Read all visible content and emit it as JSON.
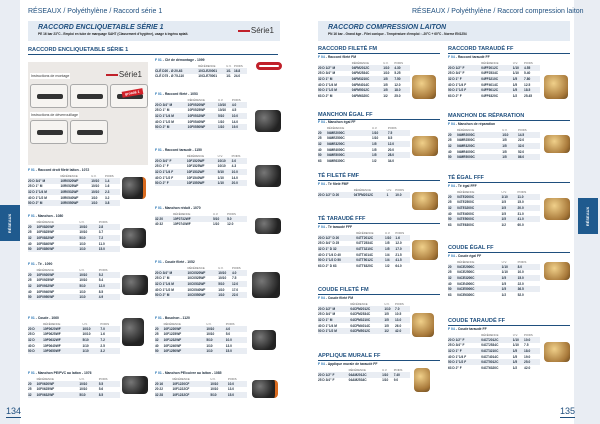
{
  "left_page": {
    "breadcrumb": "RÉSEAUX / Polyéthylène / Raccord série 1",
    "banner_title": "RACCORD ENCLIQUETABLE SÉRIE 1",
    "banner_subtitle": "PE 16 bar 23°C - Emploi en tube de marquage SAHT (Classement d'hygiène), usage à ingénu aptait.",
    "logo": "Série1",
    "section": "RACCORD ENCLIQUETABLE SÉRIE 1",
    "tab": "RÉSEAUX",
    "page_number": "134",
    "instructions_montage": "Instructions de montage",
    "instructions_deverrouillage": "Instructions de déverrouillage",
    "badge": "grosdé 1",
    "panel_logo": "Série1"
  },
  "right_page": {
    "breadcrumb": "RÉSEAUX / Polyéthylène / Raccord compression laiton",
    "banner_title": "RACCORD COMPRESSION LAITON",
    "banner_subtitle": "PN 16 bar - Grand âge - Filet conique - Température d'emploi : -20°C + 60°C - Norme EN1254",
    "tab": "RÉSEAUX",
    "page_number": "135",
    "sections": [
      "RACCORD FILETÉ FM",
      "RACCORD TARAUDÉ FF",
      "MANCHON ÉGAL FF",
      "MANCHON DE RÉPARATION",
      "TÉ FILETÉ FMF",
      "TÉ ÉGAL FFF",
      "TÉ TARAUDÉ FFF",
      "COUDE ÉGAL FF",
      "COUDE FILETÉ FM",
      "COUDE TARAUDÉ FF",
      "APPLIQUE MURALE FF"
    ]
  },
  "headers": [
    "",
    "RÉFÉRENCE",
    "U.V.",
    "POIDS"
  ],
  "blocks": [
    {
      "code": "F 01",
      "title": "Clé de démontage - 1099",
      "rows": [
        [
          "CLÉ D20 - Ø 20-63",
          "10CLE20001",
          "1/1",
          "16.8"
        ],
        [
          "CLÉ D75 - Ø 75-110",
          "10CLE75001",
          "1/1",
          "24.0"
        ]
      ]
    },
    {
      "code": "F 01",
      "title": "Raccord fileté - 1053",
      "rows": [
        [
          "20 D 3/4\" M",
          "10F0520WF",
          "10/10",
          "4.0"
        ],
        [
          "25 D 1\" M",
          "10F0525WF",
          "10/10",
          "4.5"
        ],
        [
          "32 D 1\"1/4 M",
          "10F0532WF",
          "5/10",
          "10.0"
        ],
        [
          "40 D 1\"1/2 M",
          "10F0540WF",
          "1/10",
          "14.0"
        ],
        [
          "50 D 2\" M",
          "10F0550WF",
          "1/10",
          "19.0"
        ]
      ]
    },
    {
      "code": "F 01",
      "title": "Raccord droit fileté laiton - 1072",
      "rows": [
        [
          "20 D 3/4\" M",
          "10R0520WF",
          "10/10",
          "1.4"
        ],
        [
          "25 D 1\" M",
          "10R0525WF",
          "10/10",
          "1.6"
        ],
        [
          "32 D 1\"1/4 M",
          "10R0532WF",
          "10/10",
          "2.3"
        ],
        [
          "40 D 1\"1/2 M",
          "10R0540WF",
          "1/10",
          "3.2"
        ],
        [
          "50 D 2\" M",
          "10R0550WF",
          "1/10",
          "3.8"
        ]
      ]
    },
    {
      "code": "F 01",
      "title": "Raccord taraudé - 1150",
      "rows": [
        [
          "20 D 3/4\" F",
          "10F1520WF",
          "10/10",
          "3.0"
        ],
        [
          "25 D 1\" F",
          "10F1525WF",
          "10/10",
          "4.3"
        ],
        [
          "32 D 1\"1/4 F",
          "10F1532WF",
          "5/10",
          "10.0"
        ],
        [
          "40 D 1\"1/2 F",
          "10F1540WF",
          "1/10",
          "14.0"
        ],
        [
          "50 D 2\" F",
          "10F1550WF",
          "1/10",
          "20.0"
        ]
      ]
    },
    {
      "code": "F 01",
      "title": "Manchon - 1080",
      "rows": [
        [
          "20",
          "10F0820WF",
          "10/10",
          "2.8"
        ],
        [
          "25",
          "10F0825WF",
          "10/10",
          "3.7"
        ],
        [
          "32",
          "10F0832WF",
          "5/10",
          "7.2"
        ],
        [
          "40",
          "10F0840WF",
          "1/10",
          "11.0"
        ],
        [
          "50",
          "10F0850WF",
          "1/10",
          "15.0"
        ]
      ]
    },
    {
      "code": "F 01",
      "title": "Manchon réduit - 1070",
      "rows": [
        [
          "32 20",
          "10F0732WF",
          "5/10",
          "5.0"
        ],
        [
          "40 32",
          "10F0740WF",
          "1/10",
          "12.0"
        ]
      ]
    },
    {
      "code": "F 01",
      "title": "Té - 1090",
      "rows": [
        [
          "20",
          "10F0920WF",
          "10/10",
          "5.2"
        ],
        [
          "25",
          "10F0925WF",
          "10/10",
          "5.4"
        ],
        [
          "32",
          "10F0932WF",
          "5/10",
          "12.0"
        ],
        [
          "40",
          "10F0940WF",
          "1/10",
          "8.5"
        ],
        [
          "50",
          "10F0950WF",
          "1/10",
          "4.9"
        ]
      ]
    },
    {
      "code": "F 01",
      "title": "Coude fileté - 1052",
      "rows": [
        [
          "20 D 3/4\" M",
          "10C0520WF",
          "10/10",
          "4.0"
        ],
        [
          "25 D 1\" M",
          "10C0525WF",
          "10/10",
          "7.5"
        ],
        [
          "32 D 1\"1/4 M",
          "10C0532WF",
          "5/10",
          "12.0"
        ],
        [
          "40 D 1\"1/2 M",
          "10C0540WF",
          "1/10",
          "17.0"
        ],
        [
          "50 D 2\" M",
          "10C0550WF",
          "1/10",
          "22.0"
        ]
      ]
    },
    {
      "code": "F 01",
      "title": "Coude - 1060",
      "rows": [
        [
          "20 D",
          "10F0620WF",
          "10/10",
          "7.0"
        ],
        [
          "25 D",
          "10F0625WF",
          "10/10",
          "1.6"
        ],
        [
          "32 D",
          "10F0632WF",
          "5/10",
          "7.2"
        ],
        [
          "40 D",
          "10F0640WF",
          "1/10",
          "2.5"
        ],
        [
          "50 D",
          "10F0650WF",
          "1/10",
          "3.2"
        ]
      ]
    },
    {
      "code": "F 01",
      "title": "Bouchon - 1120",
      "rows": [
        [
          "20",
          "10F1220WF",
          "10/10",
          "4.0"
        ],
        [
          "25",
          "10F1225WF",
          "10/10",
          "5.0"
        ],
        [
          "32",
          "10F1232WF",
          "5/10",
          "10.0"
        ],
        [
          "40",
          "10F1240WF",
          "1/10",
          "13.0"
        ],
        [
          "50",
          "10F1250WF",
          "1/10",
          "15.0"
        ]
      ]
    },
    {
      "code": "F 01",
      "title": "Manchon PE/PVC au laiton - 1076",
      "rows": [
        [
          "20",
          "10F0620WF",
          "10/10",
          "5.5"
        ],
        [
          "25",
          "10F0625WF",
          "10/10",
          "5.6"
        ],
        [
          "32",
          "10F0632WF",
          "5/10",
          "8.5"
        ]
      ]
    },
    {
      "code": "F 01",
      "title": "Manchon PE/cuivre au laiton - 1085",
      "rows": [
        [
          "20 16",
          "10F1220CF",
          "10/10",
          "10.0"
        ],
        [
          "20 22",
          "10F1222CF",
          "10/10",
          "13.0"
        ],
        [
          "32 28",
          "10F1232CF",
          "5/10",
          "15.0"
        ]
      ]
    },
    {
      "code": "F 04",
      "title": "Raccord fileté FM",
      "rows": [
        [
          "20 D 1/2\" M",
          "04FM2012C",
          "1/10",
          "4.30"
        ],
        [
          "25 D 3/4\" M",
          "04FM2534C",
          "1/10",
          "5.25"
        ],
        [
          "32 D 1\" M",
          "04FM3210C",
          "1/5",
          "7.50"
        ],
        [
          "40 D 1\"1/4 M",
          "04FM4014C",
          "1/5",
          "12.0"
        ],
        [
          "50 D 1\"1/2 M",
          "04FM5012C",
          "1/5",
          "18.0"
        ],
        [
          "63 D 2\" M",
          "04FM6320C",
          "1/2",
          "25.0"
        ]
      ]
    },
    {
      "code": "F 04",
      "title": "Raccord taraudé FF",
      "rows": [
        [
          "20 D 1/2\" F",
          "04FF2012C",
          "1/10",
          "4.55"
        ],
        [
          "25 D 3/4\" F",
          "04FF2534C",
          "1/10",
          "5.40"
        ],
        [
          "32 D 1\" F",
          "04FF3210C",
          "1/5",
          "7.80"
        ],
        [
          "40 D 1\"1/4 F",
          "04FF4014C",
          "1/5",
          "12.5"
        ],
        [
          "50 D 1\"1/2 F",
          "04FF5012C",
          "1/5",
          "18.5"
        ],
        [
          "63 D 2\" F",
          "04FF6320C",
          "1/2",
          "25.45"
        ]
      ]
    },
    {
      "code": "F 04",
      "title": "Manchon égal FF",
      "rows": [
        [
          "20",
          "04ME2000C",
          "1/10",
          "7.5"
        ],
        [
          "25",
          "04ME2500C",
          "1/10",
          "8.5"
        ],
        [
          "32",
          "04ME3200C",
          "1/5",
          "12.0"
        ],
        [
          "40",
          "04ME4000C",
          "1/5",
          "20.0"
        ],
        [
          "50",
          "04ME5000C",
          "1/5",
          "28.0"
        ],
        [
          "63",
          "04ME6300C",
          "1/2",
          "34.0"
        ]
      ]
    },
    {
      "code": "F 04",
      "title": "Manchon de réparation",
      "rows": [
        [
          "20",
          "04MR2000C",
          "1/10",
          "14.5"
        ],
        [
          "25",
          "04MR2500C",
          "1/5",
          "22.0"
        ],
        [
          "32",
          "04MR3200C",
          "1/5",
          "32.0"
        ],
        [
          "40",
          "04MR4000C",
          "1/5",
          "52.0"
        ],
        [
          "50",
          "04MR5000C",
          "1/5",
          "86.0"
        ]
      ]
    },
    {
      "code": "F 04",
      "title": "Té fileté FMF",
      "rows": [
        [
          "20 D 1/2\" D 20",
          "04TFM2012C",
          "1",
          "10.0"
        ]
      ]
    },
    {
      "code": "F 04",
      "title": "Té égal FFF",
      "rows": [
        [
          "20",
          "04TE2000C",
          "1/10",
          "11.0"
        ],
        [
          "25",
          "04TE2500C",
          "1/5",
          "15.0"
        ],
        [
          "32",
          "04TE3200C",
          "1/5",
          "20.0"
        ],
        [
          "40",
          "04TE4000C",
          "1/5",
          "31.0"
        ],
        [
          "50",
          "04TE5000C",
          "1/5",
          "41.0"
        ],
        [
          "63",
          "04TE6300C",
          "1/2",
          "60.0"
        ]
      ]
    },
    {
      "code": "F 04",
      "title": "Té taraudé FFF",
      "rows": [
        [
          "20 D 1/2\" D 20",
          "04TT2012C",
          "1/10",
          "1.6"
        ],
        [
          "25 D 3/4\" D 25",
          "04TT2534C",
          "1/5",
          "12.0"
        ],
        [
          "32 D 1\" D 32",
          "04TT3210C",
          "1/5",
          "17.0"
        ],
        [
          "40 D 1\"1/4 D 40",
          "04TT4014C",
          "1/4",
          "21.5"
        ],
        [
          "50 D 1\"1/2 D 50",
          "04TT5012C",
          "1/4",
          "41.5"
        ],
        [
          "63 D 2\" D 63",
          "04TT6320C",
          "1/2",
          "64.0"
        ]
      ]
    },
    {
      "code": "F 04",
      "title": "Coude égal FF",
      "rows": [
        [
          "20",
          "04CE2000C",
          "1/10",
          "8.0"
        ],
        [
          "25",
          "04CE2500C",
          "1/10",
          "10.0"
        ],
        [
          "32",
          "04CE3200C",
          "1/5",
          "15.0"
        ],
        [
          "40",
          "04CE4000C",
          "1/5",
          "22.0"
        ],
        [
          "50",
          "04CE5000C",
          "1/5",
          "36.5"
        ],
        [
          "63",
          "04CE6300C",
          "1/2",
          "52.0"
        ]
      ]
    },
    {
      "code": "F 04",
      "title": "Coude fileté FM",
      "rows": [
        [
          "20 D 1/2\" M",
          "04CFM2012C",
          "1/10",
          "7.0"
        ],
        [
          "25 D 3/4\" M",
          "04CFM2534C",
          "1/5",
          "10.5"
        ],
        [
          "32 D 1\" M",
          "04CFM3210C",
          "1/5",
          "13.0"
        ],
        [
          "40 D 1\"1/4 M",
          "04CFM4014C",
          "1/5",
          "26.0"
        ],
        [
          "50 D 1\"1/2 M",
          "04CFM5012C",
          "1/2",
          "42.0"
        ]
      ]
    },
    {
      "code": "F 04",
      "title": "Coude taraudé FF",
      "rows": [
        [
          "20 D 1/2\" F",
          "04CT2012C",
          "1/10",
          "10.0"
        ],
        [
          "25 D 3/4\" F",
          "04CT2534C",
          "1/10",
          "7.5"
        ],
        [
          "32 D 1\" F",
          "04CT3210C",
          "1/5",
          "18.0"
        ],
        [
          "40 D 1\"1/4 F",
          "04CT4014C",
          "1/5",
          "19.0"
        ],
        [
          "50 D 1\"1/2 F",
          "04CT5012C",
          "1/5",
          "25.0"
        ],
        [
          "63 D 2\" F",
          "04CT6320C",
          "1/2",
          "42.0"
        ]
      ]
    },
    {
      "code": "F 04",
      "title": "Applique murale de taraudé FF",
      "rows": [
        [
          "20 D 1/2\" F",
          "04AM2012C",
          "1/10",
          "7.40"
        ],
        [
          "25 D 3/4\" F",
          "04AM2534C",
          "1/10",
          "9.0"
        ]
      ]
    }
  ]
}
